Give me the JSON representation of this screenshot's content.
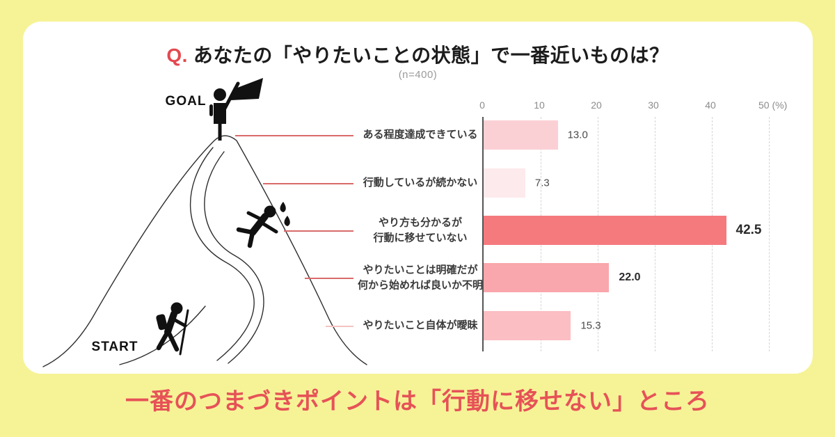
{
  "title": {
    "prefix": "Q.",
    "text": "あなたの「やりたいことの状態」で一番近いものは？",
    "subtitle": "(n=400)"
  },
  "illustration": {
    "goal_label": "GOAL",
    "start_label": "START",
    "figures": [
      "flag-person-on-summit",
      "slipping-climber-with-sweat",
      "hiker-with-backpack-and-stick"
    ]
  },
  "chart_data": {
    "type": "bar",
    "orientation": "horizontal",
    "unit": "%",
    "xlim": [
      0,
      50
    ],
    "tick_labels": [
      "0",
      "10",
      "20",
      "30",
      "40",
      "50 (%)"
    ],
    "grid": "vertical-dotted",
    "legend": "none",
    "categories": [
      "ある程度達成できている",
      "行動しているが続かない",
      "やり方も分かるが\n行動に移せていない",
      "やりたいことは明確だが\n何から始めれば良いか不明",
      "やりたいこと自体が曖昧"
    ],
    "values": [
      13.0,
      7.3,
      42.5,
      22.0,
      15.3
    ],
    "value_labels": [
      "13.0",
      "7.3",
      "42.5",
      "22.0",
      "15.3"
    ],
    "bar_colors": [
      "#fad0d4",
      "#fdeaec",
      "#f47a7e",
      "#f9a7ac",
      "#fbbec3"
    ],
    "emphasized_rows": [
      2,
      3
    ]
  },
  "footer": {
    "message": "一番のつまづきポイントは「行動に移せない」ところ"
  },
  "colors": {
    "background": "#f6f397",
    "card": "#ffffff",
    "accent_red": "#e4484f",
    "footer_red": "#e65257",
    "leader_line": "#d96a6a",
    "leader_line_light": "#f4c3c3",
    "text_dark": "#1c1c1c",
    "text_gray": "#9a9a9a"
  }
}
